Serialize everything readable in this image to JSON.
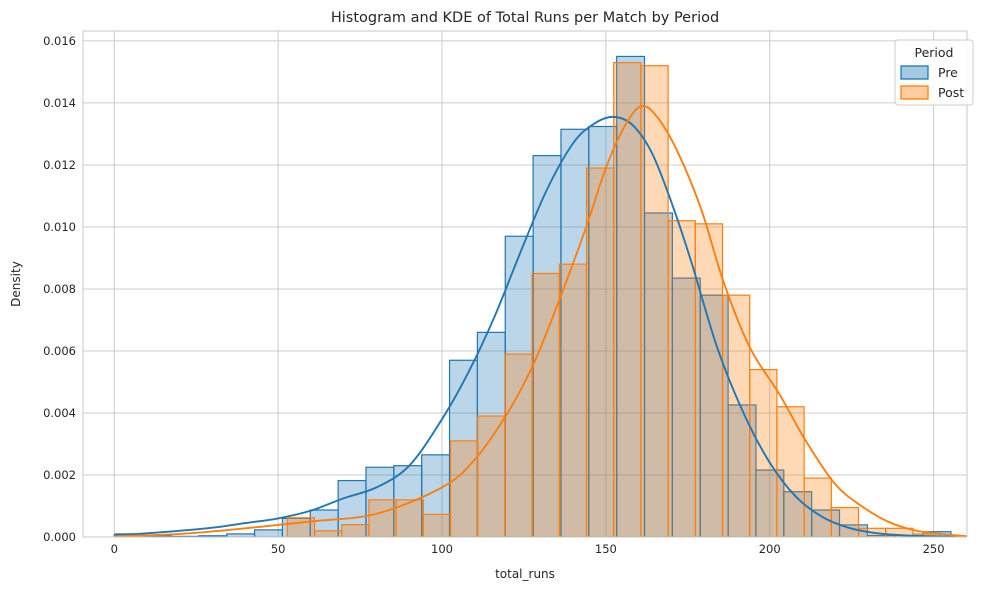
{
  "chart_data": {
    "type": "histogram+kde",
    "title": "Histogram and KDE of Total Runs per Match by Period",
    "xlabel": "total_runs",
    "ylabel": "Density",
    "grid": true,
    "legend_position": "upper right",
    "xlim": [
      -9.55,
      260.2
    ],
    "ylim": [
      0,
      0.01632
    ],
    "xticks": [
      0,
      50,
      100,
      150,
      200,
      250
    ],
    "xtick_labels": [
      "0",
      "50",
      "100",
      "150",
      "200",
      "250"
    ],
    "yticks": [
      0,
      0.002,
      0.004,
      0.006,
      0.008,
      0.01,
      0.012,
      0.014,
      0.016
    ],
    "ytick_labels": [
      "0.000",
      "0.002",
      "0.004",
      "0.006",
      "0.008",
      "0.010",
      "0.012",
      "0.014",
      "0.016"
    ],
    "colors": {
      "grid": "#cccccc",
      "spine": "#c9c9c9",
      "text": "#262626",
      "background": "#ffffff"
    },
    "legend": {
      "title": "Period",
      "entries": [
        {
          "label": "Pre"
        },
        {
          "label": "Post"
        }
      ]
    },
    "series": [
      {
        "name": "Pre",
        "color": "#1f77b4",
        "fill_opacity": 0.3,
        "bin_edges": [
          0.3,
          8.8,
          17.3,
          25.8,
          34.3,
          42.8,
          51.3,
          59.8,
          68.3,
          76.8,
          85.3,
          93.8,
          102.3,
          110.8,
          119.3,
          127.8,
          136.3,
          144.8,
          153.3,
          161.8,
          170.3,
          178.8,
          187.3,
          195.8,
          204.3,
          212.8,
          221.3,
          229.8,
          238.3,
          246.8,
          255.3
        ],
        "bin_heights": [
          0.0001,
          4e-05,
          2e-05,
          4e-05,
          0.0001,
          0.00023,
          0.0006,
          0.00087,
          0.00182,
          0.00225,
          0.0023,
          0.00265,
          0.0057,
          0.0066,
          0.0097,
          0.0123,
          0.01315,
          0.01324,
          0.0155,
          0.01045,
          0.00835,
          0.0078,
          0.00426,
          0.00216,
          0.00146,
          0.00087,
          0.00039,
          5e-05,
          5e-05,
          0.00017
        ],
        "kde_x": [
          0,
          10,
          20,
          30,
          40,
          50,
          60,
          70,
          80,
          90,
          100,
          108,
          116,
          124,
          132,
          140,
          146,
          152,
          158,
          164,
          170,
          176,
          184,
          192,
          200,
          208,
          216,
          224,
          232,
          240,
          250,
          260
        ],
        "kde_y": [
          6e-05,
          0.00012,
          0.0002,
          0.0003,
          0.00045,
          0.0006,
          0.00085,
          0.00125,
          0.0016,
          0.0023,
          0.0038,
          0.0053,
          0.0071,
          0.0092,
          0.0112,
          0.0127,
          0.0133,
          0.01355,
          0.0133,
          0.0124,
          0.0108,
          0.0089,
          0.0061,
          0.004,
          0.0024,
          0.0013,
          0.00065,
          0.0003,
          0.00013,
          6e-05,
          2e-05,
          1e-05
        ]
      },
      {
        "name": "Post",
        "color": "#ff7f0e",
        "fill_opacity": 0.3,
        "bin_edges": [
          52.8,
          61.1,
          69.4,
          77.7,
          86.0,
          94.3,
          102.6,
          110.9,
          119.2,
          127.5,
          135.8,
          144.1,
          152.4,
          160.7,
          169.0,
          177.3,
          185.6,
          193.9,
          202.2,
          210.5,
          218.8,
          227.1,
          235.4,
          243.7,
          252.0
        ],
        "bin_heights": [
          0.00062,
          0.0002,
          0.0004,
          0.0012,
          0.0012,
          0.00073,
          0.0031,
          0.0039,
          0.0059,
          0.0085,
          0.0088,
          0.0119,
          0.0153,
          0.0152,
          0.0102,
          0.0101,
          0.0078,
          0.0054,
          0.0042,
          0.0019,
          0.00095,
          0.00028,
          0.00028,
          0.0001
        ],
        "kde_x": [
          0,
          20,
          40,
          60,
          80,
          100,
          110,
          120,
          128,
          136,
          144,
          150,
          156,
          161,
          166,
          172,
          179,
          186,
          194,
          203,
          211,
          220,
          228,
          236,
          244,
          252,
          260
        ],
        "kde_y": [
          2e-05,
          0.0001,
          0.00028,
          0.0005,
          0.00075,
          0.0016,
          0.0025,
          0.004,
          0.0056,
          0.0077,
          0.01,
          0.0119,
          0.0133,
          0.0139,
          0.0135,
          0.0124,
          0.0106,
          0.0082,
          0.0061,
          0.0046,
          0.0031,
          0.0017,
          0.001,
          0.0005,
          0.00022,
          0.0001,
          3e-05
        ]
      }
    ]
  }
}
